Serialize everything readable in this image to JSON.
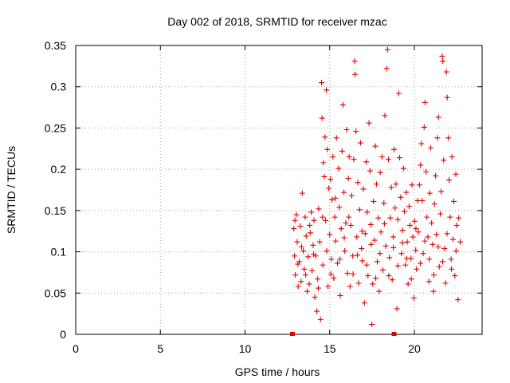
{
  "chart_data": {
    "type": "scatter",
    "title": "Day 002 of 2018, SRMTID for receiver mzac",
    "xlabel": "GPS time / hours",
    "ylabel": "SRMTID / TECUs",
    "xlim": [
      0,
      24
    ],
    "ylim": [
      0,
      0.35
    ],
    "x_ticks": [
      0,
      5,
      10,
      15,
      20
    ],
    "x_tick_labels": [
      "0",
      "5",
      "10",
      "15",
      "20"
    ],
    "y_ticks": [
      0,
      0.05,
      0.1,
      0.15,
      0.2,
      0.25,
      0.3,
      0.35
    ],
    "y_tick_labels": [
      "0",
      "0.05",
      "0.1",
      "0.15",
      "0.2",
      "0.25",
      "0.3",
      "0.35"
    ],
    "grid": true,
    "marker": "plus",
    "color": "#e00000",
    "x_range_markers": [
      12.8,
      18.8
    ],
    "series": [
      {
        "points": [
          [
            12.88,
            0.128
          ],
          [
            12.92,
            0.095
          ],
          [
            12.97,
            0.072
          ],
          [
            13.03,
            0.145
          ],
          [
            13.08,
            0.112
          ],
          [
            13.14,
            0.058
          ],
          [
            13.2,
            0.088
          ],
          [
            13.26,
            0.131
          ],
          [
            13.31,
            0.064
          ],
          [
            13.38,
            0.171
          ],
          [
            13.44,
            0.101
          ],
          [
            13.5,
            0.079
          ],
          [
            13.55,
            0.142
          ],
          [
            13.61,
            0.119
          ],
          [
            13.67,
            0.052
          ],
          [
            13.73,
            0.094
          ],
          [
            13.79,
            0.061
          ],
          [
            13.85,
            0.123
          ],
          [
            13.91,
            0.148
          ],
          [
            13.96,
            0.077
          ],
          [
            14.02,
            0.108
          ],
          [
            14.07,
            0.138
          ],
          [
            14.12,
            0.045
          ],
          [
            14.18,
            0.095
          ],
          [
            14.24,
            0.028
          ],
          [
            14.29,
            0.067
          ],
          [
            14.35,
            0.152
          ],
          [
            14.41,
            0.112
          ],
          [
            14.46,
            0.018
          ],
          [
            14.52,
            0.305
          ],
          [
            14.55,
            0.262
          ],
          [
            14.59,
            0.084
          ],
          [
            14.63,
            0.208
          ],
          [
            14.68,
            0.191
          ],
          [
            14.72,
            0.239
          ],
          [
            14.76,
            0.138
          ],
          [
            14.8,
            0.296
          ],
          [
            14.85,
            0.224
          ],
          [
            14.9,
            0.058
          ],
          [
            14.95,
            0.177
          ],
          [
            15.0,
            0.121
          ],
          [
            15.05,
            0.188
          ],
          [
            15.1,
            0.091
          ],
          [
            15.14,
            0.163
          ],
          [
            15.19,
            0.215
          ],
          [
            15.24,
            0.068
          ],
          [
            15.3,
            0.142
          ],
          [
            15.35,
            0.113
          ],
          [
            15.4,
            0.238
          ],
          [
            15.46,
            0.086
          ],
          [
            15.52,
            0.201
          ],
          [
            15.57,
            0.154
          ],
          [
            15.62,
            0.047
          ],
          [
            15.68,
            0.128
          ],
          [
            15.73,
            0.222
          ],
          [
            15.78,
            0.278
          ],
          [
            15.84,
            0.172
          ],
          [
            15.89,
            0.101
          ],
          [
            15.95,
            0.135
          ],
          [
            16.0,
            0.248
          ],
          [
            16.05,
            0.074
          ],
          [
            16.1,
            0.189
          ],
          [
            16.15,
            0.215
          ],
          [
            16.2,
            0.058
          ],
          [
            16.25,
            0.132
          ],
          [
            16.3,
            0.168
          ],
          [
            16.36,
            0.095
          ],
          [
            16.42,
            0.212
          ],
          [
            16.47,
            0.331
          ],
          [
            16.5,
            0.315
          ],
          [
            16.55,
            0.246
          ],
          [
            16.6,
            0.118
          ],
          [
            16.66,
            0.184
          ],
          [
            16.71,
            0.062
          ],
          [
            16.77,
            0.151
          ],
          [
            16.82,
            0.232
          ],
          [
            16.88,
            0.104
          ],
          [
            16.93,
            0.089
          ],
          [
            16.99,
            0.176
          ],
          [
            17.05,
            0.038
          ],
          [
            17.1,
            0.122
          ],
          [
            17.16,
            0.209
          ],
          [
            17.21,
            0.148
          ],
          [
            17.26,
            0.071
          ],
          [
            17.32,
            0.256
          ],
          [
            17.38,
            0.198
          ],
          [
            17.43,
            0.133
          ],
          [
            17.49,
            0.012
          ],
          [
            17.54,
            0.061
          ],
          [
            17.59,
            0.161
          ],
          [
            17.65,
            0.114
          ],
          [
            17.7,
            0.228
          ],
          [
            17.76,
            0.182
          ],
          [
            17.81,
            0.088
          ],
          [
            17.87,
            0.141
          ],
          [
            17.92,
            0.052
          ],
          [
            17.98,
            0.196
          ],
          [
            18.03,
            0.124
          ],
          [
            18.09,
            0.215
          ],
          [
            18.14,
            0.078
          ],
          [
            18.2,
            0.159
          ],
          [
            18.26,
            0.265
          ],
          [
            18.31,
            0.107
          ],
          [
            18.37,
            0.322
          ],
          [
            18.42,
            0.345
          ],
          [
            18.47,
            0.212
          ],
          [
            18.53,
            0.093
          ],
          [
            18.58,
            0.141
          ],
          [
            18.64,
            0.178
          ],
          [
            18.69,
            0.066
          ],
          [
            18.75,
            0.118
          ],
          [
            18.8,
            0.224
          ],
          [
            18.86,
            0.153
          ],
          [
            18.91,
            0.182
          ],
          [
            18.97,
            0.031
          ],
          [
            19.02,
            0.139
          ],
          [
            19.08,
            0.292
          ],
          [
            19.13,
            0.214
          ],
          [
            19.19,
            0.166
          ],
          [
            19.24,
            0.098
          ],
          [
            19.3,
            0.126
          ],
          [
            19.36,
            0.201
          ],
          [
            19.41,
            0.149
          ],
          [
            19.47,
            0.084
          ],
          [
            19.52,
            0.172
          ],
          [
            19.58,
            0.112
          ],
          [
            19.63,
            0.061
          ],
          [
            19.69,
            0.155
          ],
          [
            19.74,
            0.132
          ],
          [
            19.8,
            0.092
          ],
          [
            19.86,
            0.181
          ],
          [
            19.91,
            0.118
          ],
          [
            19.97,
            0.044
          ],
          [
            20.02,
            0.137
          ],
          [
            20.08,
            0.102
          ],
          [
            20.13,
            0.079
          ],
          [
            20.19,
            0.162
          ],
          [
            20.24,
            0.124
          ],
          [
            20.3,
            0.181
          ],
          [
            20.36,
            0.205
          ],
          [
            20.41,
            0.231
          ],
          [
            20.46,
            0.162
          ],
          [
            20.52,
            0.098
          ],
          [
            20.58,
            0.251
          ],
          [
            20.63,
            0.281
          ],
          [
            20.69,
            0.197
          ],
          [
            20.74,
            0.142
          ],
          [
            20.8,
            0.118
          ],
          [
            20.86,
            0.064
          ],
          [
            20.91,
            0.171
          ],
          [
            20.97,
            0.226
          ],
          [
            21.02,
            0.135
          ],
          [
            21.08,
            0.109
          ],
          [
            21.13,
            0.052
          ],
          [
            21.19,
            0.158
          ],
          [
            21.25,
            0.192
          ],
          [
            21.3,
            0.121
          ],
          [
            21.36,
            0.238
          ],
          [
            21.42,
            0.263
          ],
          [
            21.47,
            0.082
          ],
          [
            21.53,
            0.146
          ],
          [
            21.58,
            0.173
          ],
          [
            21.64,
            0.337
          ],
          [
            21.68,
            0.331
          ],
          [
            21.73,
            0.211
          ],
          [
            21.78,
            0.104
          ],
          [
            21.84,
            0.062
          ],
          [
            21.89,
            0.318
          ],
          [
            21.94,
            0.287
          ],
          [
            22.0,
            0.238
          ],
          [
            22.05,
            0.187
          ],
          [
            22.11,
            0.142
          ],
          [
            22.17,
            0.091
          ],
          [
            22.22,
            0.215
          ],
          [
            22.28,
            0.115
          ],
          [
            22.33,
            0.161
          ],
          [
            22.39,
            0.071
          ],
          [
            22.45,
            0.194
          ],
          [
            22.5,
            0.132
          ],
          [
            22.58,
            0.042
          ],
          [
            12.95,
            0.138
          ],
          [
            13.12,
            0.085
          ],
          [
            13.34,
            0.106
          ],
          [
            13.58,
            0.072
          ],
          [
            13.82,
            0.132
          ],
          [
            14.05,
            0.097
          ],
          [
            14.33,
            0.056
          ],
          [
            14.58,
            0.142
          ],
          [
            14.82,
            0.101
          ],
          [
            15.07,
            0.073
          ],
          [
            15.33,
            0.165
          ],
          [
            15.6,
            0.091
          ],
          [
            15.86,
            0.117
          ],
          [
            16.13,
            0.142
          ],
          [
            16.38,
            0.073
          ],
          [
            16.64,
            0.096
          ],
          [
            16.91,
            0.125
          ],
          [
            17.18,
            0.084
          ],
          [
            17.45,
            0.109
          ],
          [
            17.72,
            0.068
          ],
          [
            17.97,
            0.098
          ],
          [
            18.23,
            0.134
          ],
          [
            18.49,
            0.071
          ],
          [
            18.76,
            0.105
          ],
          [
            19.03,
            0.083
          ],
          [
            19.29,
            0.111
          ],
          [
            19.55,
            0.092
          ],
          [
            19.82,
            0.067
          ],
          [
            20.09,
            0.128
          ],
          [
            20.35,
            0.086
          ],
          [
            20.61,
            0.113
          ],
          [
            20.88,
            0.091
          ],
          [
            21.15,
            0.072
          ],
          [
            21.41,
            0.106
          ],
          [
            21.67,
            0.088
          ],
          [
            21.93,
            0.122
          ],
          [
            22.19,
            0.079
          ],
          [
            22.46,
            0.101
          ],
          [
            22.62,
            0.141
          ],
          [
            22.71,
            0.112
          ]
        ]
      }
    ]
  }
}
